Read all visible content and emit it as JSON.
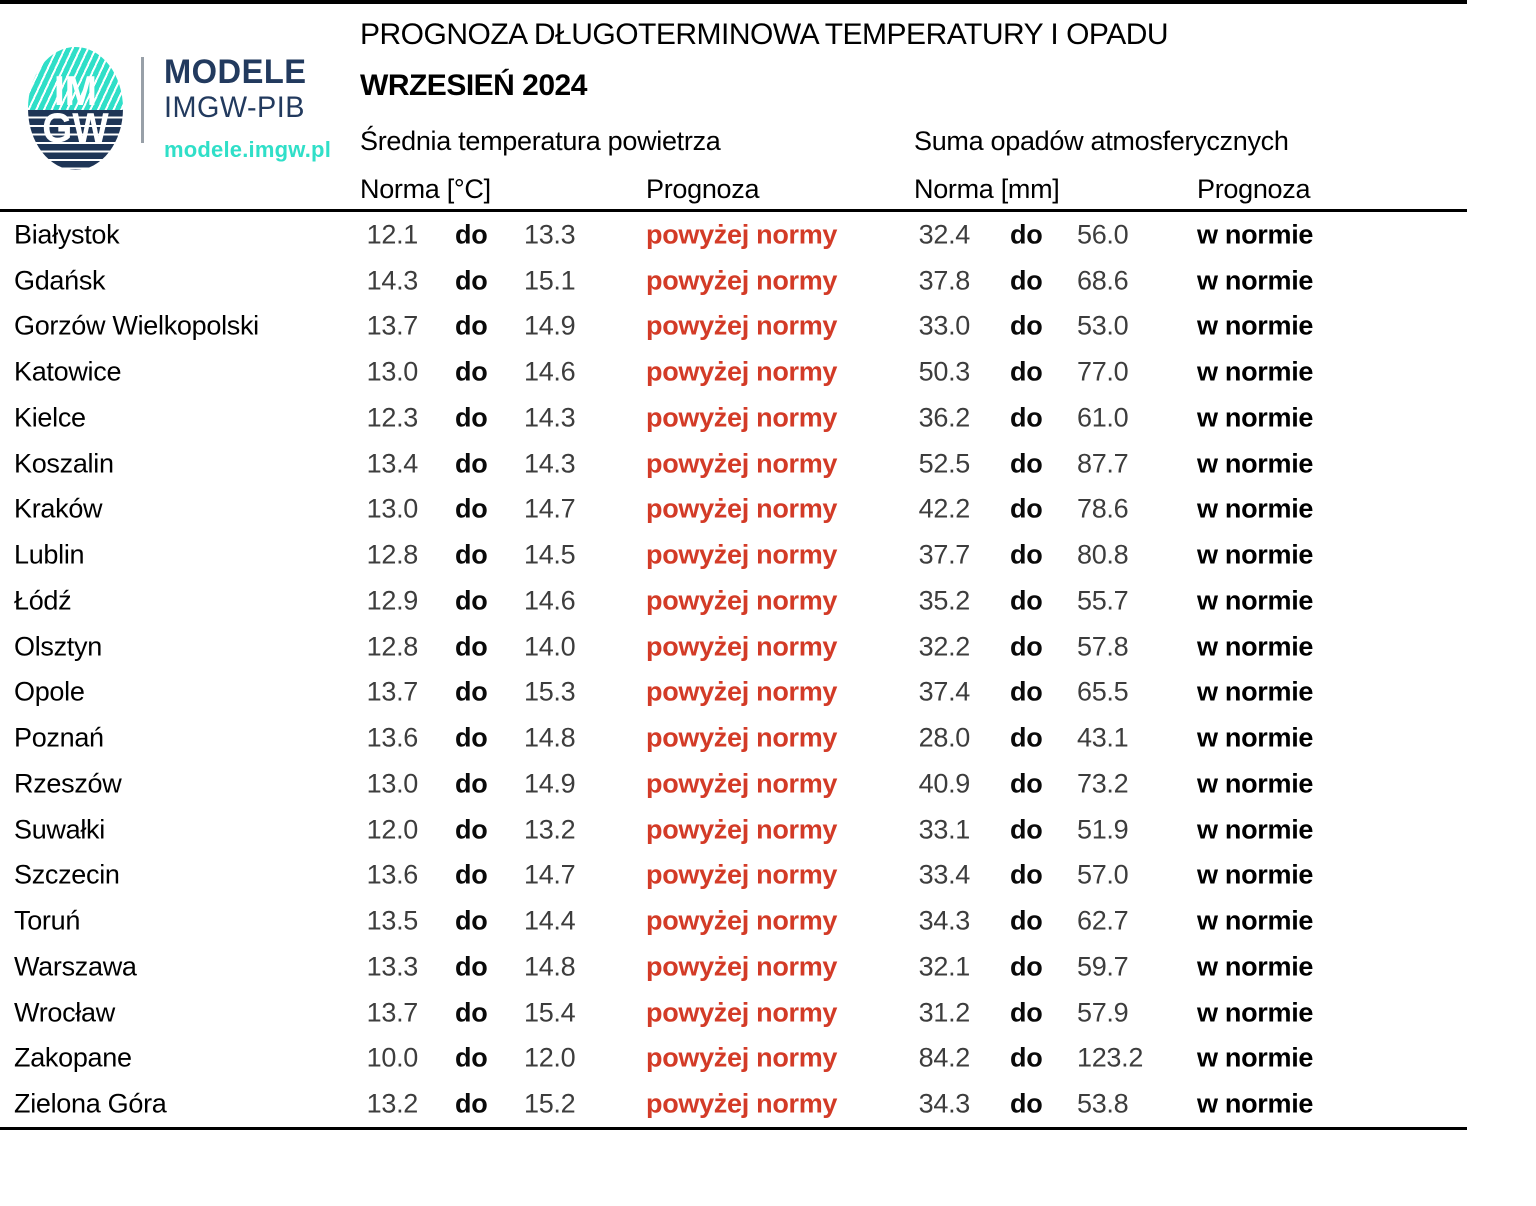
{
  "logo": {
    "circle_top": "IM",
    "circle_bottom": "GW",
    "brand_line1": "MODELE",
    "brand_line2": "IMGW-PIB",
    "brand_url": "modele.imgw.pl"
  },
  "header": {
    "title": "PROGNOZA DŁUGOTERMINOWA TEMPERATURY I OPADU",
    "subtitle": "WRZESIEŃ 2024",
    "temp_section": "Średnia temperatura powietrza",
    "precip_section": "Suma opadów atmosferycznych",
    "temp_norm_label": "Norma [°C]",
    "temp_forecast_label": "Prognoza",
    "precip_norm_label": "Norma [mm]",
    "precip_forecast_label": "Prognoza"
  },
  "colors": {
    "accent_red": "#d33b27",
    "navy": "#223a5e",
    "teal": "#30dfc8",
    "number_gray": "#3d3d3d"
  },
  "table": {
    "separator_word": "do",
    "temp_forecast_value": "powyżej normy",
    "precip_forecast_value": "w normie",
    "rows": [
      {
        "city": "Białystok",
        "t_min": "12.1",
        "t_max": "13.3",
        "t_prog": "powyżej normy",
        "p_min": "32.4",
        "p_max": "56.0",
        "p_prog": "w normie"
      },
      {
        "city": "Gdańsk",
        "t_min": "14.3",
        "t_max": "15.1",
        "t_prog": "powyżej normy",
        "p_min": "37.8",
        "p_max": "68.6",
        "p_prog": "w normie"
      },
      {
        "city": "Gorzów Wielkopolski",
        "t_min": "13.7",
        "t_max": "14.9",
        "t_prog": "powyżej normy",
        "p_min": "33.0",
        "p_max": "53.0",
        "p_prog": "w normie"
      },
      {
        "city": "Katowice",
        "t_min": "13.0",
        "t_max": "14.6",
        "t_prog": "powyżej normy",
        "p_min": "50.3",
        "p_max": "77.0",
        "p_prog": "w normie"
      },
      {
        "city": "Kielce",
        "t_min": "12.3",
        "t_max": "14.3",
        "t_prog": "powyżej normy",
        "p_min": "36.2",
        "p_max": "61.0",
        "p_prog": "w normie"
      },
      {
        "city": "Koszalin",
        "t_min": "13.4",
        "t_max": "14.3",
        "t_prog": "powyżej normy",
        "p_min": "52.5",
        "p_max": "87.7",
        "p_prog": "w normie"
      },
      {
        "city": "Kraków",
        "t_min": "13.0",
        "t_max": "14.7",
        "t_prog": "powyżej normy",
        "p_min": "42.2",
        "p_max": "78.6",
        "p_prog": "w normie"
      },
      {
        "city": "Lublin",
        "t_min": "12.8",
        "t_max": "14.5",
        "t_prog": "powyżej normy",
        "p_min": "37.7",
        "p_max": "80.8",
        "p_prog": "w normie"
      },
      {
        "city": "Łódź",
        "t_min": "12.9",
        "t_max": "14.6",
        "t_prog": "powyżej normy",
        "p_min": "35.2",
        "p_max": "55.7",
        "p_prog": "w normie"
      },
      {
        "city": "Olsztyn",
        "t_min": "12.8",
        "t_max": "14.0",
        "t_prog": "powyżej normy",
        "p_min": "32.2",
        "p_max": "57.8",
        "p_prog": "w normie"
      },
      {
        "city": "Opole",
        "t_min": "13.7",
        "t_max": "15.3",
        "t_prog": "powyżej normy",
        "p_min": "37.4",
        "p_max": "65.5",
        "p_prog": "w normie"
      },
      {
        "city": "Poznań",
        "t_min": "13.6",
        "t_max": "14.8",
        "t_prog": "powyżej normy",
        "p_min": "28.0",
        "p_max": "43.1",
        "p_prog": "w normie"
      },
      {
        "city": "Rzeszów",
        "t_min": "13.0",
        "t_max": "14.9",
        "t_prog": "powyżej normy",
        "p_min": "40.9",
        "p_max": "73.2",
        "p_prog": "w normie"
      },
      {
        "city": "Suwałki",
        "t_min": "12.0",
        "t_max": "13.2",
        "t_prog": "powyżej normy",
        "p_min": "33.1",
        "p_max": "51.9",
        "p_prog": "w normie"
      },
      {
        "city": "Szczecin",
        "t_min": "13.6",
        "t_max": "14.7",
        "t_prog": "powyżej normy",
        "p_min": "33.4",
        "p_max": "57.0",
        "p_prog": "w normie"
      },
      {
        "city": "Toruń",
        "t_min": "13.5",
        "t_max": "14.4",
        "t_prog": "powyżej normy",
        "p_min": "34.3",
        "p_max": "62.7",
        "p_prog": "w normie"
      },
      {
        "city": "Warszawa",
        "t_min": "13.3",
        "t_max": "14.8",
        "t_prog": "powyżej normy",
        "p_min": "32.1",
        "p_max": "59.7",
        "p_prog": "w normie"
      },
      {
        "city": "Wrocław",
        "t_min": "13.7",
        "t_max": "15.4",
        "t_prog": "powyżej normy",
        "p_min": "31.2",
        "p_max": "57.9",
        "p_prog": "w normie"
      },
      {
        "city": "Zakopane",
        "t_min": "10.0",
        "t_max": "12.0",
        "t_prog": "powyżej normy",
        "p_min": "84.2",
        "p_max": "123.2",
        "p_prog": "w normie"
      },
      {
        "city": "Zielona Góra",
        "t_min": "13.2",
        "t_max": "15.2",
        "t_prog": "powyżej normy",
        "p_min": "34.3",
        "p_max": "53.8",
        "p_prog": "w normie"
      }
    ]
  }
}
